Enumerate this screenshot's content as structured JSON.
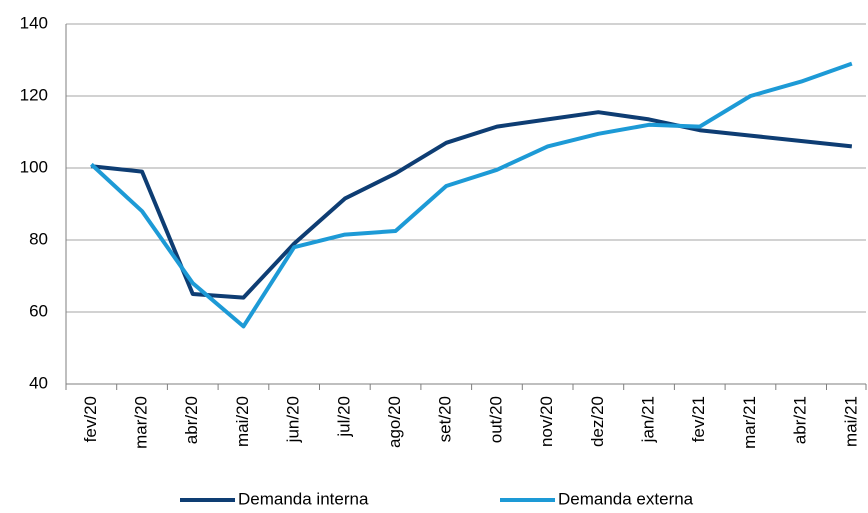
{
  "chart_data": {
    "type": "line",
    "categories": [
      "fev/20",
      "mar/20",
      "abr/20",
      "mai/20",
      "jun/20",
      "jul/20",
      "ago/20",
      "set/20",
      "out/20",
      "nov/20",
      "dez/20",
      "jan/21",
      "fev/21",
      "mar/21",
      "abr/21",
      "mai/21"
    ],
    "series": [
      {
        "name": "Demanda interna",
        "color": "#0e3d73",
        "values": [
          100.5,
          99,
          65,
          64,
          79,
          91.5,
          98.5,
          107,
          111.5,
          113.5,
          115.5,
          113.5,
          110.5,
          109,
          107.5,
          106
        ]
      },
      {
        "name": "Demanda externa",
        "color": "#1d9ad6",
        "values": [
          101,
          88,
          68,
          56,
          78,
          81.5,
          82.5,
          95,
          99.5,
          106,
          109.5,
          112,
          111.5,
          120,
          124,
          129
        ]
      }
    ],
    "ylim": [
      40,
      140
    ],
    "yticks": [
      40,
      60,
      80,
      100,
      120,
      140
    ],
    "grid": true
  }
}
